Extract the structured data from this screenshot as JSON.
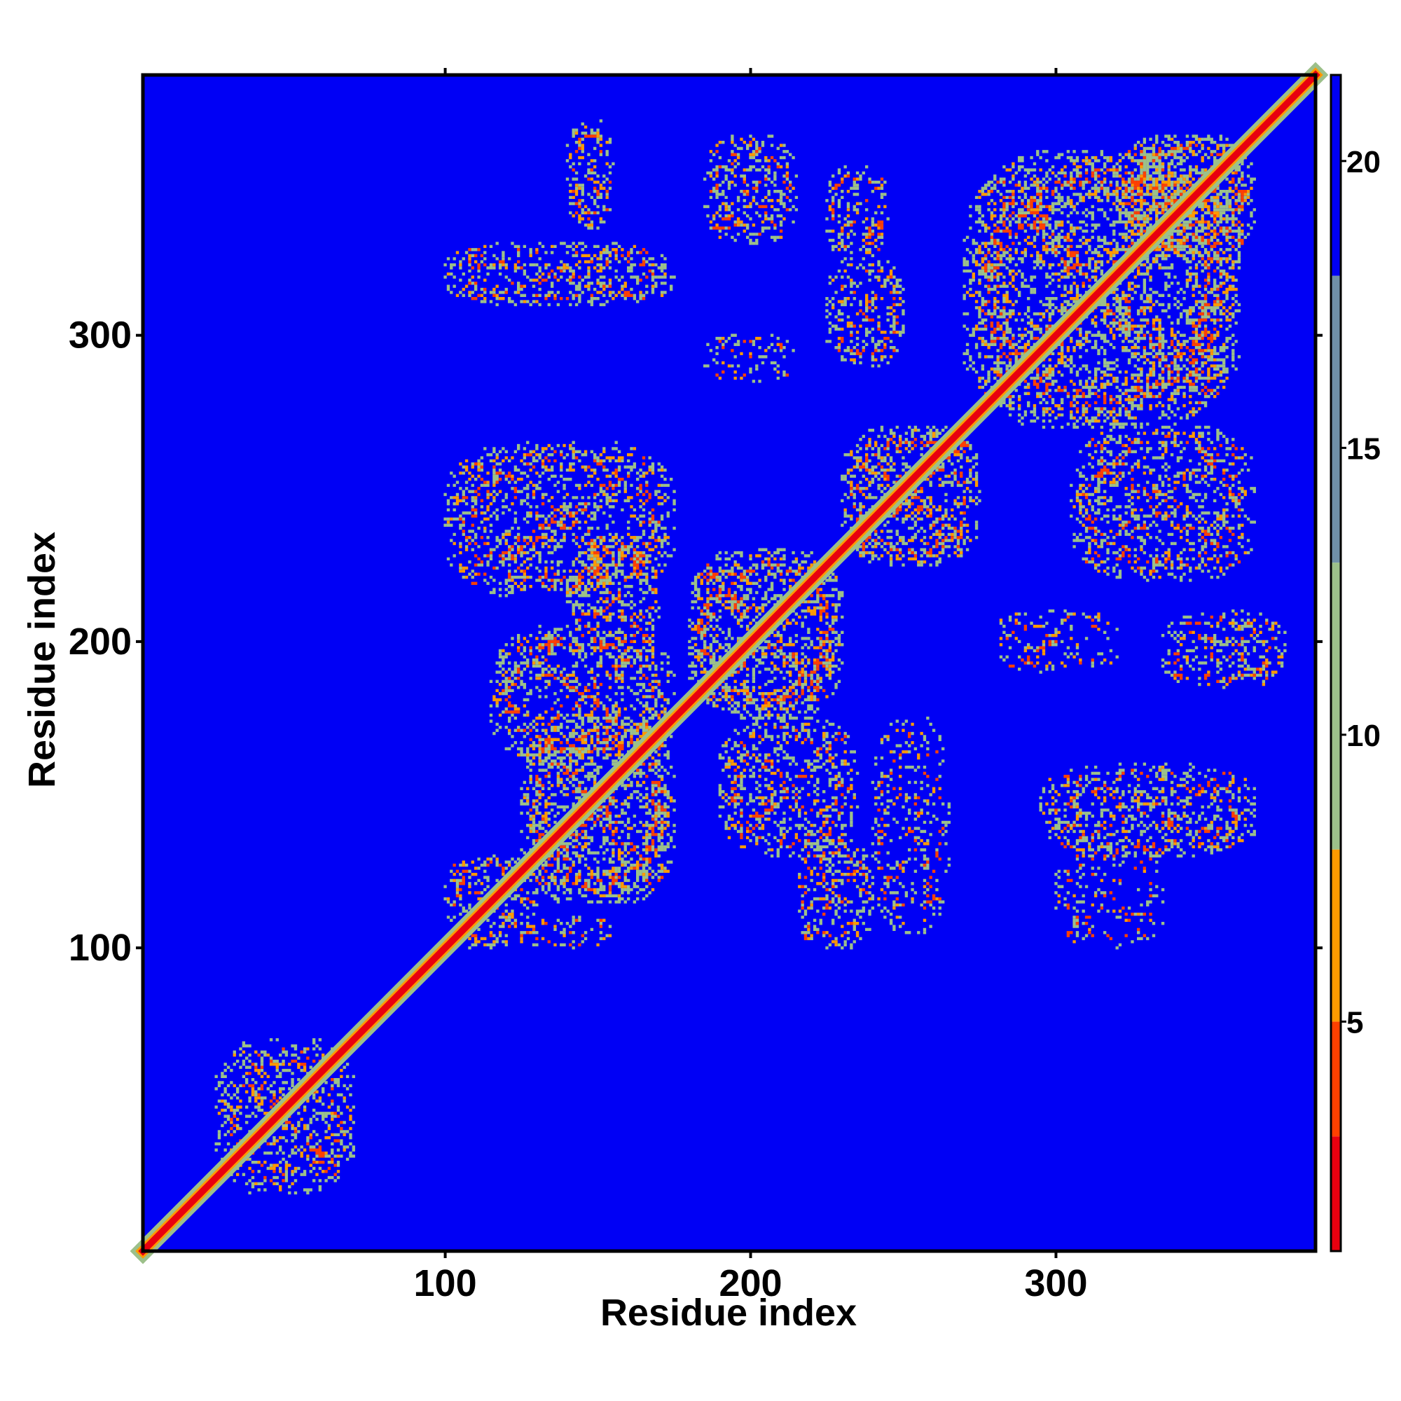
{
  "chart_data": {
    "type": "heatmap",
    "title": "",
    "xlabel": "Residue index",
    "ylabel": "Residue index",
    "n_residues": 385,
    "xlim": [
      1,
      385
    ],
    "ylim": [
      1,
      385
    ],
    "x_ticks": [
      "100",
      "200",
      "300"
    ],
    "x_tick_values": [
      100,
      200,
      300
    ],
    "y_ticks": [
      "100",
      "200",
      "300"
    ],
    "y_tick_values": [
      100,
      200,
      300
    ],
    "colorbar": {
      "range": [
        1,
        21.5
      ],
      "ticks": [
        "5",
        "10",
        "15",
        "20"
      ],
      "tick_values": [
        5,
        10,
        15,
        20
      ]
    },
    "color_scale": [
      {
        "max": 3,
        "color": "#e8000f"
      },
      {
        "max": 5,
        "color": "#ff4000"
      },
      {
        "max": 8,
        "color": "#ff9a00"
      },
      {
        "max": 13,
        "color": "#9cc08a"
      },
      {
        "max": 18,
        "color": "#6f90a8"
      },
      {
        "max": 22,
        "color": "#0000f5"
      }
    ],
    "background_color": "#0000f5",
    "diagonal_color": "#e8000f",
    "grid": false,
    "regions": [
      {
        "x": [
          125,
          175
        ],
        "y": [
          115,
          175
        ],
        "level": "strong"
      },
      {
        "x": [
          180,
          230
        ],
        "y": [
          175,
          230
        ],
        "level": "strong"
      },
      {
        "x": [
          230,
          275
        ],
        "y": [
          225,
          270
        ],
        "level": "strong"
      },
      {
        "x": [
          270,
          360
        ],
        "y": [
          270,
          360
        ],
        "level": "strong"
      },
      {
        "x": [
          320,
          365
        ],
        "y": [
          325,
          365
        ],
        "level": "strong"
      },
      {
        "x": [
          25,
          70
        ],
        "y": [
          20,
          70
        ],
        "level": "medium"
      },
      {
        "x": [
          100,
          130
        ],
        "y": [
          100,
          130
        ],
        "level": "medium"
      },
      {
        "x": [
          115,
          175
        ],
        "y": [
          160,
          205
        ],
        "level": "medium"
      },
      {
        "x": [
          190,
          235
        ],
        "y": [
          130,
          175
        ],
        "level": "medium"
      },
      {
        "x": [
          215,
          240
        ],
        "y": [
          100,
          135
        ],
        "level": "medium"
      },
      {
        "x": [
          240,
          265
        ],
        "y": [
          105,
          175
        ],
        "level": "weak"
      },
      {
        "x": [
          125,
          155
        ],
        "y": [
          100,
          110
        ],
        "level": "weak"
      },
      {
        "x": [
          100,
          175
        ],
        "y": [
          215,
          265
        ],
        "level": "medium"
      },
      {
        "x": [
          140,
          170
        ],
        "y": [
          195,
          235
        ],
        "level": "medium"
      },
      {
        "x": [
          185,
          215
        ],
        "y": [
          285,
          300
        ],
        "level": "weak"
      },
      {
        "x": [
          185,
          215
        ],
        "y": [
          330,
          365
        ],
        "level": "medium"
      },
      {
        "x": [
          100,
          175
        ],
        "y": [
          310,
          330
        ],
        "level": "medium"
      },
      {
        "x": [
          140,
          155
        ],
        "y": [
          335,
          370
        ],
        "level": "medium"
      },
      {
        "x": [
          225,
          245
        ],
        "y": [
          325,
          355
        ],
        "level": "medium"
      },
      {
        "x": [
          225,
          250
        ],
        "y": [
          290,
          325
        ],
        "level": "medium"
      },
      {
        "x": [
          305,
          365
        ],
        "y": [
          220,
          270
        ],
        "level": "medium"
      },
      {
        "x": [
          280,
          320
        ],
        "y": [
          190,
          210
        ],
        "level": "weak"
      },
      {
        "x": [
          335,
          375
        ],
        "y": [
          185,
          210
        ],
        "level": "medium"
      },
      {
        "x": [
          295,
          365
        ],
        "y": [
          130,
          160
        ],
        "level": "medium"
      },
      {
        "x": [
          300,
          335
        ],
        "y": [
          100,
          135
        ],
        "level": "weak"
      }
    ]
  }
}
